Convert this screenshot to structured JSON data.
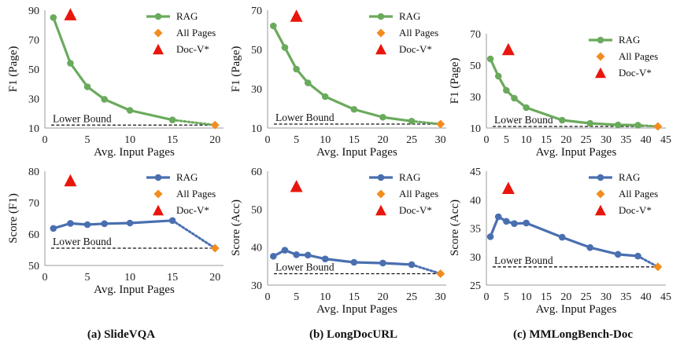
{
  "colors": {
    "rag_top": "#6aaa5c",
    "rag_bottom": "#4a6fb0",
    "all_pages": "#f28c1e",
    "doc_v": "#e8160c",
    "lower_bound": "#111111"
  },
  "legend": {
    "rag": "RAG",
    "all_pages": "All Pages",
    "doc_v": "Doc-V*"
  },
  "lower_bound_label": "Lower Bound",
  "captions": [
    "(a) SlideVQA",
    "(b) LongDocURL",
    "(c) MMLongBench-Doc"
  ],
  "chart_data": [
    {
      "type": "line",
      "panel": "top-left",
      "xlabel": "Avg. Input Pages",
      "ylabel": "F1 (Page)",
      "xlim": [
        0,
        21
      ],
      "ylim": [
        10,
        90
      ],
      "xticks": [
        "0",
        "5",
        "10",
        "15",
        "20"
      ],
      "yticks": [
        "10",
        "30",
        "50",
        "70",
        "90"
      ],
      "xtick_values": [
        0,
        5,
        10,
        15,
        20
      ],
      "ytick_values": [
        10,
        30,
        50,
        70,
        90
      ],
      "series": [
        {
          "name": "RAG",
          "x": [
            1,
            3,
            5,
            7,
            10,
            15
          ],
          "y": [
            85,
            54,
            38,
            29.5,
            22,
            15.5
          ]
        }
      ],
      "all_pages": {
        "x": 20,
        "y": 12
      },
      "doc_v": {
        "x": 3,
        "y": 87
      },
      "lower_bound": 12,
      "legend_position": "top-right"
    },
    {
      "type": "line",
      "panel": "top-middle",
      "xlabel": "Avg. Input Pages",
      "ylabel": "F1 (Page)",
      "xlim": [
        0,
        31
      ],
      "ylim": [
        10,
        70
      ],
      "xticks": [
        "0",
        "5",
        "10",
        "15",
        "20",
        "25",
        "30"
      ],
      "yticks": [
        "10",
        "30",
        "50",
        "70"
      ],
      "xtick_values": [
        0,
        5,
        10,
        15,
        20,
        25,
        30
      ],
      "ytick_values": [
        10,
        30,
        50,
        70
      ],
      "series": [
        {
          "name": "RAG",
          "x": [
            1,
            3,
            5,
            7,
            10,
            15,
            20,
            25
          ],
          "y": [
            62,
            51,
            40,
            33,
            26,
            19.5,
            15.5,
            13.5
          ]
        }
      ],
      "all_pages": {
        "x": 30,
        "y": 12
      },
      "doc_v": {
        "x": 5,
        "y": 67
      },
      "lower_bound": 12,
      "legend_position": "top-right"
    },
    {
      "type": "line",
      "panel": "top-right",
      "xlabel": "Avg. Input Pages",
      "ylabel": "F1 (Page)",
      "xlim": [
        0,
        45
      ],
      "ylim": [
        10,
        70
      ],
      "xticks": [
        "0",
        "5",
        "10",
        "15",
        "20",
        "25",
        "30",
        "35",
        "40",
        "45"
      ],
      "yticks": [
        "10",
        "30",
        "50",
        "70"
      ],
      "xtick_values": [
        0,
        5,
        10,
        15,
        20,
        25,
        30,
        35,
        40,
        45
      ],
      "ytick_values": [
        10,
        30,
        50,
        70
      ],
      "series": [
        {
          "name": "RAG",
          "x": [
            1,
            3,
            5,
            7,
            10,
            19,
            26,
            33,
            38
          ],
          "y": [
            54,
            43,
            34,
            29,
            23,
            15,
            13,
            12,
            11.8
          ]
        }
      ],
      "all_pages": {
        "x": 43,
        "y": 11
      },
      "doc_v": {
        "x": 5.5,
        "y": 60
      },
      "lower_bound": 11,
      "legend_position": "top-right"
    },
    {
      "type": "line",
      "panel": "bottom-left",
      "xlabel": "Avg. Input Pages",
      "ylabel": "Score (F1)",
      "xlim": [
        0,
        21
      ],
      "ylim": [
        50,
        80
      ],
      "xticks": [
        "0",
        "5",
        "10",
        "15",
        "20"
      ],
      "yticks": [
        "50",
        "60",
        "70",
        "80"
      ],
      "xtick_values": [
        0,
        5,
        10,
        15,
        20
      ],
      "ytick_values": [
        50,
        60,
        70,
        80
      ],
      "series": [
        {
          "name": "RAG",
          "x": [
            1,
            3,
            5,
            7,
            10,
            15
          ],
          "y": [
            61.8,
            63.4,
            63.0,
            63.3,
            63.5,
            64.3
          ]
        }
      ],
      "all_pages": {
        "x": 20,
        "y": 55.5
      },
      "doc_v": {
        "x": 3,
        "y": 77
      },
      "lower_bound": 55.5,
      "legend_position": "top-right"
    },
    {
      "type": "line",
      "panel": "bottom-middle",
      "xlabel": "Avg. Input Pages",
      "ylabel": "Score (Acc)",
      "xlim": [
        0,
        31
      ],
      "ylim": [
        30,
        60
      ],
      "xticks": [
        "0",
        "5",
        "10",
        "15",
        "20",
        "25",
        "30"
      ],
      "yticks": [
        "30",
        "40",
        "50",
        "60"
      ],
      "xtick_values": [
        0,
        5,
        10,
        15,
        20,
        25,
        30
      ],
      "ytick_values": [
        30,
        40,
        50,
        60
      ],
      "series": [
        {
          "name": "RAG",
          "x": [
            1,
            3,
            5,
            7,
            10,
            15,
            20,
            25
          ],
          "y": [
            37.6,
            39.2,
            38.0,
            37.9,
            36.9,
            36.0,
            35.8,
            35.4
          ]
        }
      ],
      "all_pages": {
        "x": 30,
        "y": 33
      },
      "doc_v": {
        "x": 5,
        "y": 56
      },
      "lower_bound": 33,
      "legend_position": "top-right"
    },
    {
      "type": "line",
      "panel": "bottom-right",
      "xlabel": "Avg. Input Pages",
      "ylabel": "Score (Acc)",
      "xlim": [
        0,
        45
      ],
      "ylim": [
        25,
        45
      ],
      "xticks": [
        "0",
        "5",
        "10",
        "15",
        "20",
        "25",
        "30",
        "35",
        "40",
        "45"
      ],
      "yticks": [
        "25",
        "30",
        "35",
        "40",
        "45"
      ],
      "xtick_values": [
        0,
        5,
        10,
        15,
        20,
        25,
        30,
        35,
        40,
        45
      ],
      "ytick_values": [
        25,
        30,
        35,
        40,
        45
      ],
      "series": [
        {
          "name": "RAG",
          "x": [
            1,
            3,
            5,
            7,
            10,
            19,
            26,
            33,
            38
          ],
          "y": [
            33.5,
            37.0,
            36.2,
            35.8,
            35.9,
            33.4,
            31.6,
            30.4,
            30.1
          ]
        }
      ],
      "all_pages": {
        "x": 43,
        "y": 28.2
      },
      "doc_v": {
        "x": 5.5,
        "y": 42
      },
      "lower_bound": 28.2,
      "legend_position": "top-right"
    }
  ]
}
